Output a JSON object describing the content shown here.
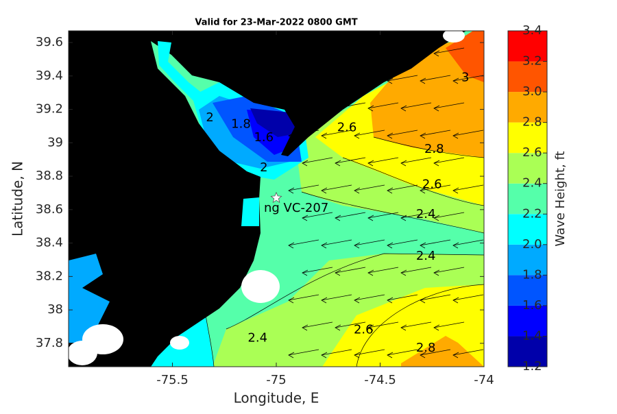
{
  "chart_data": {
    "type": "map",
    "title": "Valid for 23-Mar-2022 0800 GMT",
    "xlabel": "Longitude, E",
    "ylabel": "Latitude, N",
    "xlim": [
      -76.0,
      -74.0
    ],
    "ylim": [
      37.66,
      39.67
    ],
    "xticks": [
      -75.5,
      -75,
      -74.5,
      -74
    ],
    "yticks": [
      37.8,
      38,
      38.2,
      38.4,
      38.6,
      38.8,
      39,
      39.2,
      39.4,
      39.6
    ],
    "colorbar": {
      "label": "Wave Height, ft",
      "lim": [
        1.2,
        3.4
      ],
      "ticks": [
        1.2,
        1.4,
        1.6,
        1.8,
        {
          "value": 2,
          "label": "2.0"
        },
        2.2,
        2.4,
        2.6,
        2.8,
        {
          "value": 3,
          "label": "3.0"
        },
        3.2,
        3.4
      ],
      "colors": [
        "#0000aa",
        "#0000ff",
        "#0055ff",
        "#00aaff",
        "#00ffff",
        "#55ffaa",
        "#aaff55",
        "#ffff00",
        "#ffaa00",
        "#ff5500",
        "#ff0000"
      ]
    },
    "contour_labels": [
      {
        "value": 3,
        "lon": -74.09,
        "lat": 39.39
      },
      {
        "value": 2.6,
        "lon": -74.66,
        "lat": 39.09
      },
      {
        "value": 2.8,
        "lon": -74.24,
        "lat": 38.96
      },
      {
        "value": 2.6,
        "lon": -74.25,
        "lat": 38.75
      },
      {
        "value": 2.4,
        "lon": -74.28,
        "lat": 38.57
      },
      {
        "value": 2.4,
        "lon": -74.28,
        "lat": 38.32
      },
      {
        "value": 2,
        "lon": -75.32,
        "lat": 39.15
      },
      {
        "value": 1.8,
        "lon": -75.17,
        "lat": 39.11
      },
      {
        "value": 1.6,
        "lon": -75.06,
        "lat": 39.03
      },
      {
        "value": 2,
        "lon": -75.06,
        "lat": 38.85
      },
      {
        "value": 2.4,
        "lon": -75.09,
        "lat": 37.83
      },
      {
        "value": 2.6,
        "lon": -74.58,
        "lat": 37.88
      },
      {
        "value": 2.8,
        "lon": -74.28,
        "lat": 37.77
      }
    ],
    "station": {
      "label": "ng VC-207",
      "lon": -75.0,
      "lat": 38.67
    }
  }
}
